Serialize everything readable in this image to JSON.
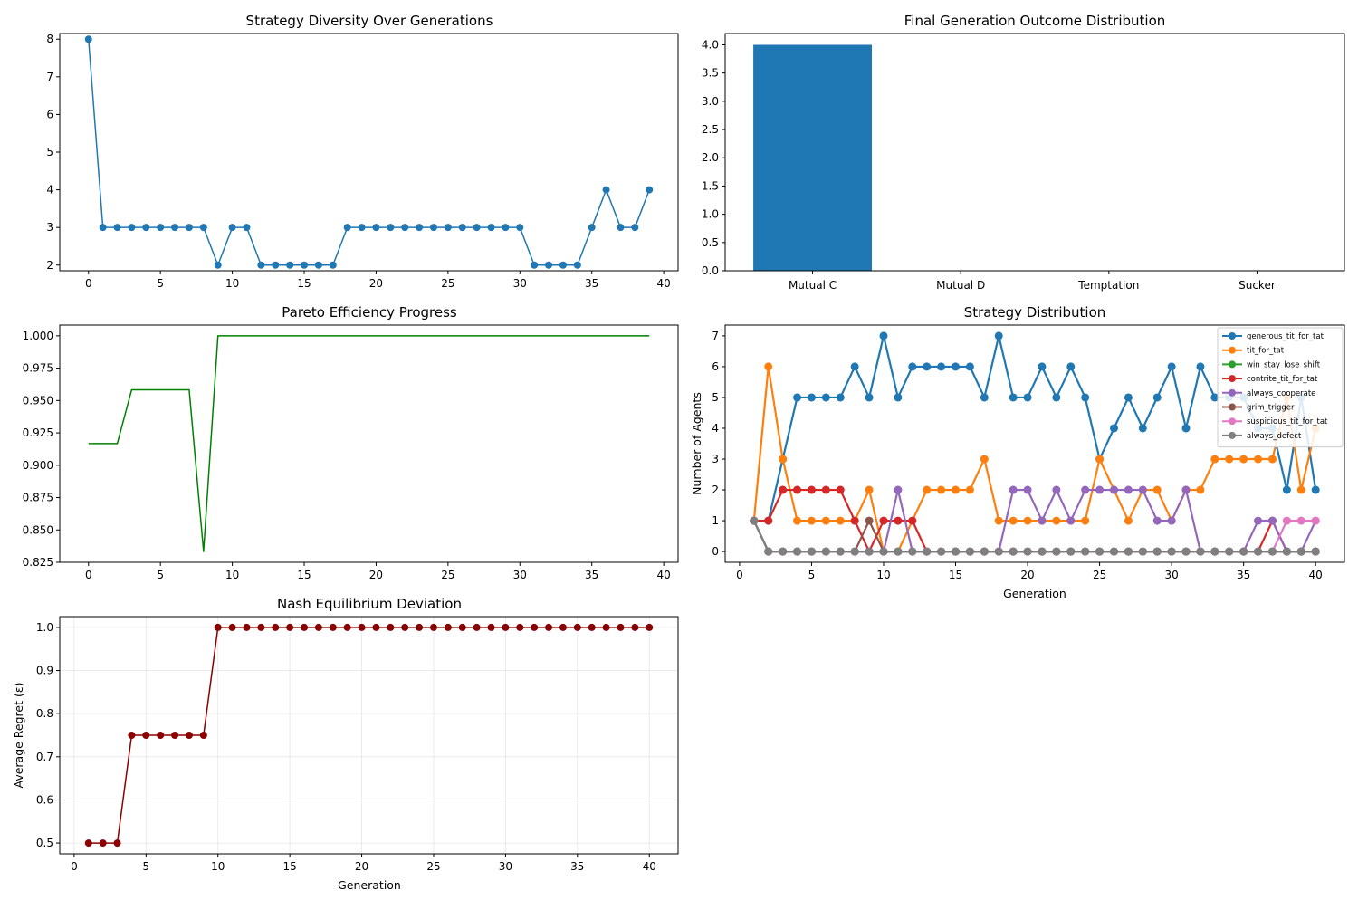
{
  "colors": {
    "blue": "#1f77b4",
    "orange": "#ff7f0e",
    "green_mpl": "#2ca02c",
    "red": "#d62728",
    "purple": "#9467bd",
    "brown": "#8c564b",
    "pink": "#e377c2",
    "gray": "#7f7f7f",
    "pareto_green": "#008000",
    "darkred": "#8b0000"
  },
  "chart_data": [
    {
      "id": "diversity",
      "type": "line",
      "title": "Strategy Diversity Over Generations",
      "xlabel": "",
      "ylabel": "",
      "xlim": [
        -2,
        41
      ],
      "ylim": [
        1.85,
        8.15
      ],
      "xticks": [
        0,
        5,
        10,
        15,
        20,
        25,
        30,
        35,
        40
      ],
      "yticks": [
        2,
        3,
        4,
        5,
        6,
        7,
        8
      ],
      "grid": false,
      "series": [
        {
          "color_key": "blue",
          "markers": true,
          "x": [
            0,
            1,
            2,
            3,
            4,
            5,
            6,
            7,
            8,
            9,
            10,
            11,
            12,
            13,
            14,
            15,
            16,
            17,
            18,
            19,
            20,
            21,
            22,
            23,
            24,
            25,
            26,
            27,
            28,
            29,
            30,
            31,
            32,
            33,
            34,
            35,
            36,
            37,
            38,
            39
          ],
          "values": [
            8,
            3,
            3,
            3,
            3,
            3,
            3,
            3,
            3,
            2,
            3,
            3,
            2,
            2,
            2,
            2,
            2,
            2,
            3,
            3,
            3,
            3,
            3,
            3,
            3,
            3,
            3,
            3,
            3,
            3,
            3,
            2,
            2,
            2,
            2,
            3,
            4,
            3,
            3,
            4
          ]
        }
      ]
    },
    {
      "id": "outcomes",
      "type": "bar",
      "title": "Final Generation Outcome Distribution",
      "xlabel": "",
      "ylabel": "",
      "ylim": [
        0,
        4.2
      ],
      "yticks": [
        0.0,
        0.5,
        1.0,
        1.5,
        2.0,
        2.5,
        3.0,
        3.5,
        4.0
      ],
      "ytick_labels": [
        "0.0",
        "0.5",
        "1.0",
        "1.5",
        "2.0",
        "2.5",
        "3.0",
        "3.5",
        "4.0"
      ],
      "grid": false,
      "categories": [
        "Mutual C",
        "Mutual D",
        "Temptation",
        "Sucker"
      ],
      "values": [
        4,
        0,
        0,
        0
      ],
      "color_key": "blue"
    },
    {
      "id": "pareto",
      "type": "line",
      "title": "Pareto Efficiency Progress",
      "xlabel": "",
      "ylabel": "",
      "xlim": [
        -2,
        41
      ],
      "ylim": [
        0.825,
        1.0083
      ],
      "xticks": [
        0,
        5,
        10,
        15,
        20,
        25,
        30,
        35,
        40
      ],
      "yticks": [
        0.825,
        0.85,
        0.875,
        0.9,
        0.925,
        0.95,
        0.975,
        1.0
      ],
      "ytick_labels": [
        "0.825",
        "0.850",
        "0.875",
        "0.900",
        "0.925",
        "0.950",
        "0.975",
        "1.000"
      ],
      "grid": false,
      "series": [
        {
          "color_key": "pareto_green",
          "markers": false,
          "x": [
            0,
            1,
            2,
            3,
            4,
            5,
            6,
            7,
            8,
            9,
            10,
            11,
            12,
            13,
            14,
            15,
            16,
            17,
            18,
            19,
            20,
            21,
            22,
            23,
            24,
            25,
            26,
            27,
            28,
            29,
            30,
            31,
            32,
            33,
            34,
            35,
            36,
            37,
            38,
            39
          ],
          "values": [
            0.9167,
            0.9167,
            0.9167,
            0.9583,
            0.9583,
            0.9583,
            0.9583,
            0.9583,
            0.8333,
            1.0,
            1.0,
            1.0,
            1.0,
            1.0,
            1.0,
            1.0,
            1.0,
            1.0,
            1.0,
            1.0,
            1.0,
            1.0,
            1.0,
            1.0,
            1.0,
            1.0,
            1.0,
            1.0,
            1.0,
            1.0,
            1.0,
            1.0,
            1.0,
            1.0,
            1.0,
            1.0,
            1.0,
            1.0,
            1.0,
            1.0
          ]
        }
      ]
    },
    {
      "id": "strategy",
      "type": "line",
      "title": "Strategy Distribution",
      "xlabel": "Generation",
      "ylabel": "Number of Agents",
      "xlim": [
        -1,
        42
      ],
      "ylim": [
        -0.35,
        7.35
      ],
      "xticks": [
        0,
        5,
        10,
        15,
        20,
        25,
        30,
        35,
        40
      ],
      "yticks": [
        0,
        1,
        2,
        3,
        4,
        5,
        6,
        7
      ],
      "grid": false,
      "legend": "top-right",
      "x": [
        1,
        2,
        3,
        4,
        5,
        6,
        7,
        8,
        9,
        10,
        11,
        12,
        13,
        14,
        15,
        16,
        17,
        18,
        19,
        20,
        21,
        22,
        23,
        24,
        25,
        26,
        27,
        28,
        29,
        30,
        31,
        32,
        33,
        34,
        35,
        36,
        37,
        38,
        39,
        40
      ],
      "series": [
        {
          "name": "generous_tit_for_tat",
          "color_key": "blue",
          "values": [
            1,
            1,
            3,
            5,
            5,
            5,
            5,
            6,
            5,
            7,
            5,
            6,
            6,
            6,
            6,
            6,
            5,
            7,
            5,
            5,
            6,
            5,
            6,
            5,
            3,
            4,
            5,
            4,
            5,
            6,
            4,
            6,
            5,
            5,
            5,
            4,
            4,
            2,
            5,
            2
          ]
        },
        {
          "name": "tit_for_tat",
          "color_key": "orange",
          "values": [
            1,
            6,
            3,
            1,
            1,
            1,
            1,
            1,
            2,
            0,
            0,
            1,
            2,
            2,
            2,
            2,
            3,
            1,
            1,
            1,
            1,
            1,
            1,
            1,
            3,
            2,
            1,
            2,
            2,
            1,
            2,
            2,
            3,
            3,
            3,
            3,
            3,
            5,
            2,
            4
          ]
        },
        {
          "name": "win_stay_lose_shift",
          "color_key": "green_mpl",
          "values": [
            1,
            0,
            0,
            0,
            0,
            0,
            0,
            0,
            0,
            0,
            0,
            0,
            0,
            0,
            0,
            0,
            0,
            0,
            0,
            0,
            0,
            0,
            0,
            0,
            0,
            0,
            0,
            0,
            0,
            0,
            0,
            0,
            0,
            0,
            0,
            0,
            0,
            0,
            0,
            0
          ]
        },
        {
          "name": "contrite_tit_for_tat",
          "color_key": "red",
          "values": [
            1,
            1,
            2,
            2,
            2,
            2,
            2,
            1,
            0,
            1,
            1,
            1,
            0,
            0,
            0,
            0,
            0,
            0,
            0,
            0,
            0,
            0,
            0,
            0,
            0,
            0,
            0,
            0,
            0,
            0,
            0,
            0,
            0,
            0,
            0,
            0,
            1,
            0,
            0,
            0
          ]
        },
        {
          "name": "always_cooperate",
          "color_key": "purple",
          "values": [
            1,
            0,
            0,
            0,
            0,
            0,
            0,
            0,
            0,
            0,
            2,
            0,
            0,
            0,
            0,
            0,
            0,
            0,
            2,
            2,
            1,
            2,
            1,
            2,
            2,
            2,
            2,
            2,
            1,
            1,
            2,
            0,
            0,
            0,
            0,
            1,
            1,
            0,
            0,
            1
          ]
        },
        {
          "name": "grim_trigger",
          "color_key": "brown",
          "values": [
            1,
            0,
            0,
            0,
            0,
            0,
            0,
            0,
            1,
            0,
            0,
            0,
            0,
            0,
            0,
            0,
            0,
            0,
            0,
            0,
            0,
            0,
            0,
            0,
            0,
            0,
            0,
            0,
            0,
            0,
            0,
            0,
            0,
            0,
            0,
            0,
            0,
            0,
            0,
            0
          ]
        },
        {
          "name": "suspicious_tit_for_tat",
          "color_key": "pink",
          "values": [
            1,
            0,
            0,
            0,
            0,
            0,
            0,
            0,
            0,
            0,
            0,
            0,
            0,
            0,
            0,
            0,
            0,
            0,
            0,
            0,
            0,
            0,
            0,
            0,
            0,
            0,
            0,
            0,
            0,
            0,
            0,
            0,
            0,
            0,
            0,
            0,
            0,
            1,
            1,
            1
          ]
        },
        {
          "name": "always_defect",
          "color_key": "gray",
          "values": [
            1,
            0,
            0,
            0,
            0,
            0,
            0,
            0,
            0,
            0,
            0,
            0,
            0,
            0,
            0,
            0,
            0,
            0,
            0,
            0,
            0,
            0,
            0,
            0,
            0,
            0,
            0,
            0,
            0,
            0,
            0,
            0,
            0,
            0,
            0,
            0,
            0,
            0,
            0,
            0
          ]
        }
      ]
    },
    {
      "id": "nash",
      "type": "line",
      "title": "Nash Equilibrium Deviation",
      "xlabel": "Generation",
      "ylabel": "Average Regret (ε)",
      "xlim": [
        -1,
        42
      ],
      "ylim": [
        0.475,
        1.025
      ],
      "xticks": [
        0,
        5,
        10,
        15,
        20,
        25,
        30,
        35,
        40
      ],
      "yticks": [
        0.5,
        0.6,
        0.7,
        0.8,
        0.9,
        1.0
      ],
      "ytick_labels": [
        "0.5",
        "0.6",
        "0.7",
        "0.8",
        "0.9",
        "1.0"
      ],
      "grid": true,
      "series": [
        {
          "color_key": "darkred",
          "markers": true,
          "x": [
            1,
            2,
            3,
            4,
            5,
            6,
            7,
            8,
            9,
            10,
            11,
            12,
            13,
            14,
            15,
            16,
            17,
            18,
            19,
            20,
            21,
            22,
            23,
            24,
            25,
            26,
            27,
            28,
            29,
            30,
            31,
            32,
            33,
            34,
            35,
            36,
            37,
            38,
            39,
            40
          ],
          "values": [
            0.5,
            0.5,
            0.5,
            0.75,
            0.75,
            0.75,
            0.75,
            0.75,
            0.75,
            1,
            1,
            1,
            1,
            1,
            1,
            1,
            1,
            1,
            1,
            1,
            1,
            1,
            1,
            1,
            1,
            1,
            1,
            1,
            1,
            1,
            1,
            1,
            1,
            1,
            1,
            1,
            1,
            1,
            1,
            1
          ]
        }
      ]
    }
  ]
}
